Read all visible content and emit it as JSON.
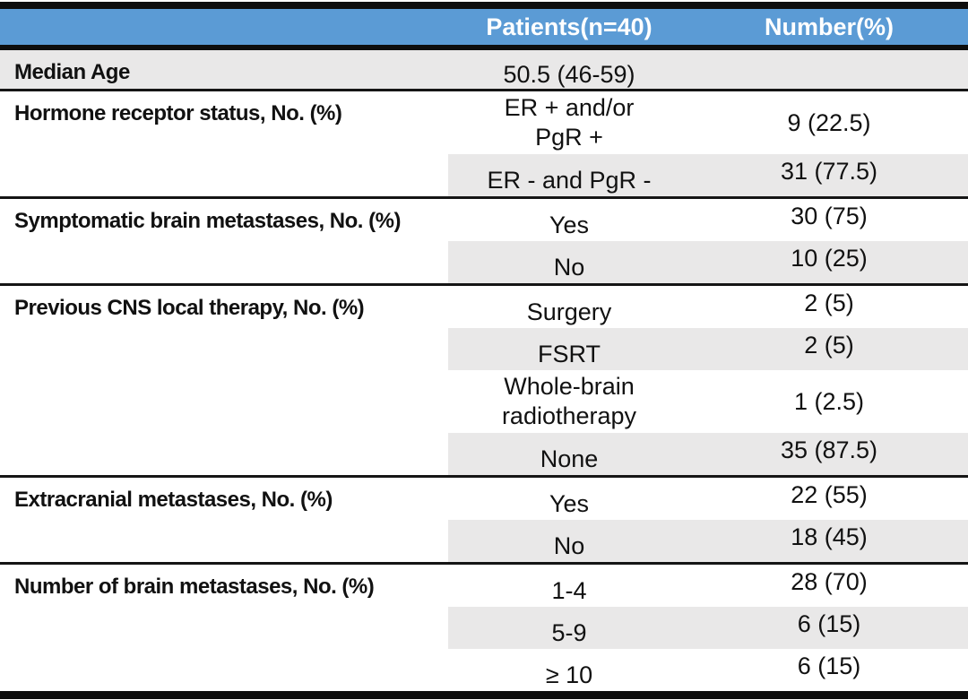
{
  "columns": {
    "patients": "Patients(n=40)",
    "number": "Number(%)"
  },
  "sections": [
    {
      "label": "Median Age",
      "full_shade": true,
      "rows": [
        {
          "patients": "50.5 (46-59)",
          "number": "",
          "shaded": false
        }
      ]
    },
    {
      "label": "Hormone receptor status, No. (%)",
      "full_shade": false,
      "rows": [
        {
          "patients": "ER + and/or\nPgR +",
          "number": "9 (22.5)",
          "shaded": false
        },
        {
          "patients": "ER - and PgR -",
          "number": "31 (77.5)",
          "shaded": true
        }
      ]
    },
    {
      "label": "Symptomatic brain metastases, No. (%)",
      "full_shade": false,
      "rows": [
        {
          "patients": "Yes",
          "number": "30 (75)",
          "shaded": false
        },
        {
          "patients": "No",
          "number": "10 (25)",
          "shaded": true
        }
      ]
    },
    {
      "label": "Previous CNS local therapy, No. (%)",
      "full_shade": false,
      "rows": [
        {
          "patients": "Surgery",
          "number": "2 (5)",
          "shaded": false
        },
        {
          "patients": "FSRT",
          "number": "2 (5)",
          "shaded": true
        },
        {
          "patients": "Whole-brain\nradiotherapy",
          "number": "1 (2.5)",
          "shaded": false
        },
        {
          "patients": "None",
          "number": "35 (87.5)",
          "shaded": true
        }
      ]
    },
    {
      "label": "Extracranial metastases, No. (%)",
      "full_shade": false,
      "rows": [
        {
          "patients": "Yes",
          "number": "22 (55)",
          "shaded": false
        },
        {
          "patients": "No",
          "number": "18 (45)",
          "shaded": true
        }
      ]
    },
    {
      "label": "Number of brain metastases, No. (%)",
      "full_shade": false,
      "rows": [
        {
          "patients": "1-4",
          "number": "28 (70)",
          "shaded": false
        },
        {
          "patients": "5-9",
          "number": "6 (15)",
          "shaded": true
        },
        {
          "patients": "≥ 10",
          "number": "6 (15)",
          "shaded": false
        }
      ]
    }
  ],
  "colors": {
    "header_bg": "#5B9BD5",
    "header_text": "#FFFFFF",
    "row_shade": "#E9E8E8",
    "border": "#0D0D0D"
  }
}
